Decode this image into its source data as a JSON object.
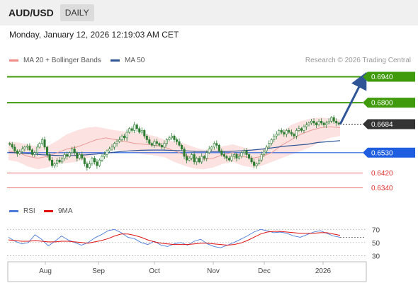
{
  "header": {
    "symbol": "AUD/USD",
    "period": "DAILY",
    "datetime": "Monday, January 12, 2026 12:19:03 AM CET"
  },
  "legend": {
    "items": [
      {
        "label": "MA 20 + Bollinger Bands",
        "color": "#f08a87"
      },
      {
        "label": "MA 50",
        "color": "#2f5597"
      }
    ],
    "copyright": "Research © 2026 Trading Central"
  },
  "rsi_legend": {
    "items": [
      {
        "label": "RSI",
        "color": "#4a7bd8"
      },
      {
        "label": "9MA",
        "color": "#e01010"
      }
    ]
  },
  "colors": {
    "green_level": "#3f9b0b",
    "blue_level": "#1f5ee0",
    "red_level": "#e0302e",
    "candle": "#2e7d32",
    "band_fill": "#fde2e2",
    "ma20": "#e89b98",
    "ma50": "#2f5597",
    "arrow": "#2f5597",
    "current_tag": "#333333"
  },
  "chart_data": [
    {
      "type": "candlestick",
      "name": "price",
      "x_ticks": [
        "Aug",
        "Sep",
        "Oct",
        "Nov",
        "Dec",
        "2026"
      ],
      "ylim": [
        0.63,
        0.698
      ],
      "levels": [
        {
          "value": 0.694,
          "label": "0.6940",
          "kind": "resistance"
        },
        {
          "value": 0.68,
          "label": "0.6800",
          "kind": "resistance"
        },
        {
          "value": 0.6684,
          "label": "0.6684",
          "kind": "current"
        },
        {
          "value": 0.653,
          "label": "0.6530",
          "kind": "pivot"
        },
        {
          "value": 0.642,
          "label": "0.6420",
          "kind": "support"
        },
        {
          "value": 0.634,
          "label": "0.6340",
          "kind": "support"
        }
      ],
      "close_series": [
        0.6575,
        0.656,
        0.654,
        0.6525,
        0.6535,
        0.655,
        0.656,
        0.6565,
        0.6545,
        0.652,
        0.653,
        0.656,
        0.658,
        0.66,
        0.656,
        0.652,
        0.649,
        0.646,
        0.647,
        0.649,
        0.648,
        0.65,
        0.652,
        0.651,
        0.653,
        0.655,
        0.653,
        0.65,
        0.652,
        0.65,
        0.647,
        0.645,
        0.647,
        0.65,
        0.648,
        0.646,
        0.649,
        0.651,
        0.652,
        0.654,
        0.655,
        0.656,
        0.658,
        0.659,
        0.66,
        0.662,
        0.661,
        0.664,
        0.666,
        0.665,
        0.668,
        0.666,
        0.664,
        0.665,
        0.662,
        0.66,
        0.658,
        0.657,
        0.659,
        0.658,
        0.657,
        0.656,
        0.658,
        0.66,
        0.661,
        0.662,
        0.66,
        0.659,
        0.657,
        0.655,
        0.651,
        0.649,
        0.65,
        0.652,
        0.648,
        0.65,
        0.648,
        0.651,
        0.65,
        0.653,
        0.655,
        0.656,
        0.658,
        0.657,
        0.654,
        0.652,
        0.651,
        0.65,
        0.649,
        0.651,
        0.652,
        0.65,
        0.651,
        0.653,
        0.654,
        0.652,
        0.65,
        0.648,
        0.646,
        0.647,
        0.649,
        0.652,
        0.654,
        0.656,
        0.658,
        0.66,
        0.662,
        0.663,
        0.665,
        0.664,
        0.663,
        0.665,
        0.664,
        0.663,
        0.662,
        0.665,
        0.666,
        0.665,
        0.667,
        0.668,
        0.669,
        0.67,
        0.669,
        0.668,
        0.67,
        0.669,
        0.668,
        0.669,
        0.67,
        0.672,
        0.67,
        0.669,
        0.6684
      ],
      "ma50_series": [
        0.6532,
        0.6529,
        0.6524,
        0.6519,
        0.6516,
        0.6514,
        0.6515,
        0.6518,
        0.6523,
        0.6529,
        0.6535,
        0.654,
        0.6543,
        0.6544,
        0.6544,
        0.6542,
        0.654,
        0.6537,
        0.6536,
        0.6536,
        0.6537,
        0.654,
        0.6544,
        0.655,
        0.6557,
        0.6565,
        0.657,
        0.6575,
        0.6585,
        0.659,
        0.6595
      ],
      "ma20_series": [
        0.654,
        0.653,
        0.651,
        0.65,
        0.651,
        0.653,
        0.655,
        0.656,
        0.658,
        0.66,
        0.661,
        0.66,
        0.659,
        0.658,
        0.6575,
        0.657,
        0.656,
        0.654,
        0.652,
        0.65,
        0.6495,
        0.65,
        0.652,
        0.653,
        0.651,
        0.65,
        0.651,
        0.653,
        0.657,
        0.66,
        0.663,
        0.665,
        0.6665,
        0.667,
        0.6665
      ],
      "bb_upper_series": [
        0.659,
        0.6585,
        0.6575,
        0.656,
        0.6565,
        0.6595,
        0.663,
        0.665,
        0.6665,
        0.667,
        0.666,
        0.665,
        0.6645,
        0.664,
        0.663,
        0.662,
        0.66,
        0.659,
        0.658,
        0.656,
        0.6545,
        0.655,
        0.6565,
        0.6575,
        0.656,
        0.6545,
        0.655,
        0.658,
        0.664,
        0.668,
        0.67,
        0.6715,
        0.672,
        0.6715,
        0.671
      ],
      "bb_lower_series": [
        0.649,
        0.648,
        0.6455,
        0.644,
        0.645,
        0.647,
        0.6475,
        0.648,
        0.65,
        0.652,
        0.654,
        0.6545,
        0.654,
        0.653,
        0.652,
        0.6515,
        0.6505,
        0.648,
        0.646,
        0.6445,
        0.644,
        0.645,
        0.647,
        0.648,
        0.646,
        0.645,
        0.646,
        0.648,
        0.65,
        0.652,
        0.654,
        0.656,
        0.659,
        0.661,
        0.662
      ],
      "forecast": {
        "from": 0.6684,
        "to": 0.694
      }
    },
    {
      "type": "line",
      "name": "RSI",
      "ylim": [
        25,
        80
      ],
      "y_ticks": [
        70,
        50,
        30
      ],
      "series": [
        {
          "name": "RSI",
          "values": [
            58,
            52,
            48,
            50,
            62,
            55,
            45,
            52,
            60,
            54,
            50,
            46,
            50,
            57,
            62,
            68,
            70,
            65,
            58,
            56,
            50,
            47,
            52,
            46,
            44,
            48,
            50,
            46,
            52,
            55,
            48,
            44,
            42,
            46,
            50,
            55,
            60,
            66,
            70,
            68,
            65,
            66,
            64,
            60,
            58,
            62,
            66,
            68,
            64,
            60,
            58
          ]
        },
        {
          "name": "9MA",
          "values": [
            54,
            53,
            52,
            52,
            53,
            52,
            51,
            51,
            52,
            52,
            51,
            50,
            49,
            51,
            53,
            56,
            60,
            63,
            63,
            61,
            58,
            54,
            51,
            49,
            48,
            47,
            47,
            47,
            48,
            49,
            49,
            48,
            47,
            46,
            47,
            49,
            53,
            58,
            63,
            66,
            67,
            67,
            66,
            65,
            64,
            64,
            64,
            65,
            65,
            63,
            61
          ]
        }
      ]
    }
  ]
}
